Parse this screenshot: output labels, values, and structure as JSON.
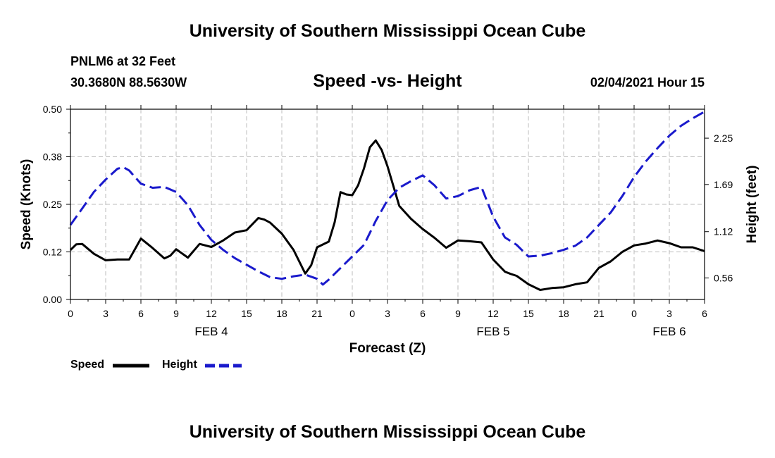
{
  "header": {
    "title": "University of Southern Mississippi Ocean Cube",
    "station": "PNLM6 at 32 Feet",
    "coords": "30.3680N 88.5630W",
    "subtitle": "Speed -vs- Height",
    "date": "02/04/2021 Hour 15"
  },
  "footer": {
    "title": "University of Southern Mississippi Ocean Cube"
  },
  "legend": {
    "speed_label": "Speed",
    "height_label": "Height"
  },
  "colors": {
    "speed": "#000000",
    "height": "#1a1acc",
    "grid": "#bbbbbb"
  },
  "chart_data": {
    "type": "line",
    "xlabel": "Forecast (Z)",
    "ylabel": "Speed (Knots)",
    "y2label": "Height (feet)",
    "xlim": [
      0,
      54
    ],
    "ylim": [
      0,
      0.5
    ],
    "y2lim": [
      0.3,
      2.6
    ],
    "x_ticks": [
      0,
      3,
      6,
      9,
      12,
      15,
      18,
      21,
      24,
      27,
      30,
      33,
      36,
      39,
      42,
      45,
      48,
      51,
      54
    ],
    "x_tick_labels": [
      "0",
      "3",
      "6",
      "9",
      "12",
      "15",
      "18",
      "21",
      "0",
      "3",
      "6",
      "9",
      "12",
      "15",
      "18",
      "21",
      "0",
      "3",
      "6"
    ],
    "y_ticks": [
      0,
      0.125,
      0.25,
      0.375,
      0.5
    ],
    "y_tick_labels": [
      "0.00",
      "0.12",
      "0.25",
      "0.38",
      "0.50"
    ],
    "y2_ticks": [
      0.56,
      1.12,
      1.69,
      2.25
    ],
    "y2_tick_labels": [
      "0.56",
      "1.12",
      "1.69",
      "2.25"
    ],
    "date_labels": [
      {
        "x": 12,
        "text": "FEB 4"
      },
      {
        "x": 36,
        "text": "FEB 5"
      },
      {
        "x": 51,
        "text": "FEB 6"
      }
    ],
    "series": [
      {
        "name": "Speed",
        "axis": "left",
        "style": "solid",
        "x": [
          0,
          0.5,
          1,
          2,
          3,
          4,
          5,
          6,
          7,
          8,
          8.5,
          9,
          10,
          11,
          12,
          13,
          14,
          15,
          16,
          16.5,
          17,
          18,
          19,
          20,
          20.5,
          21,
          22,
          22.5,
          23,
          23.5,
          24,
          24.5,
          25,
          25.5,
          26,
          26.5,
          27,
          28,
          29,
          30,
          31,
          32,
          33,
          34,
          35,
          36,
          37,
          37.5,
          38,
          39,
          40,
          41,
          42,
          43,
          44,
          45,
          46,
          47,
          48,
          49,
          50,
          51,
          52,
          53,
          54
        ],
        "y": [
          0.13,
          0.145,
          0.146,
          0.12,
          0.103,
          0.105,
          0.105,
          0.16,
          0.135,
          0.108,
          0.115,
          0.132,
          0.11,
          0.146,
          0.138,
          0.155,
          0.176,
          0.182,
          0.214,
          0.21,
          0.202,
          0.173,
          0.13,
          0.068,
          0.09,
          0.137,
          0.152,
          0.203,
          0.282,
          0.276,
          0.274,
          0.3,
          0.345,
          0.4,
          0.418,
          0.393,
          0.35,
          0.246,
          0.212,
          0.185,
          0.162,
          0.136,
          0.155,
          0.153,
          0.15,
          0.105,
          0.073,
          0.067,
          0.062,
          0.04,
          0.025,
          0.03,
          0.032,
          0.04,
          0.045,
          0.083,
          0.1,
          0.125,
          0.142,
          0.147,
          0.155,
          0.148,
          0.137,
          0.137,
          0.127
        ]
      },
      {
        "name": "Height",
        "axis": "right",
        "style": "dashed",
        "x": [
          0,
          1,
          2,
          3,
          4,
          4.5,
          5,
          6,
          7,
          8,
          9,
          10,
          11,
          12,
          13,
          14,
          15,
          16,
          17,
          18,
          19,
          20,
          21,
          21.5,
          22,
          23,
          24,
          25,
          26,
          27,
          28,
          29,
          30,
          31,
          32,
          33,
          34,
          35,
          36,
          37,
          38,
          39,
          40,
          41,
          42,
          43,
          44,
          45,
          46,
          47,
          48,
          49,
          50,
          51,
          52,
          53,
          54
        ],
        "y": [
          1.2,
          1.4,
          1.6,
          1.75,
          1.88,
          1.9,
          1.86,
          1.7,
          1.65,
          1.66,
          1.6,
          1.44,
          1.2,
          1.02,
          0.9,
          0.8,
          0.72,
          0.64,
          0.57,
          0.55,
          0.58,
          0.6,
          0.55,
          0.48,
          0.54,
          0.68,
          0.82,
          0.96,
          1.25,
          1.5,
          1.65,
          1.73,
          1.8,
          1.68,
          1.52,
          1.55,
          1.62,
          1.66,
          1.3,
          1.05,
          0.96,
          0.82,
          0.83,
          0.86,
          0.9,
          0.95,
          1.05,
          1.2,
          1.35,
          1.55,
          1.78,
          1.97,
          2.13,
          2.28,
          2.4,
          2.49,
          2.57
        ]
      }
    ]
  }
}
